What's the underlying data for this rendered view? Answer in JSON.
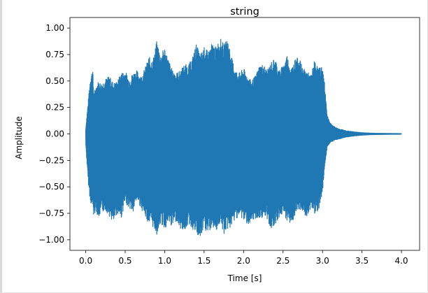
{
  "chart_data": {
    "type": "line",
    "title": "string",
    "xlabel": "Time [s]",
    "ylabel": "Amplitude",
    "xlim": [
      -0.2,
      4.23
    ],
    "ylim": [
      -1.1,
      1.1
    ],
    "x_ticks": [
      0.0,
      0.5,
      1.0,
      1.5,
      2.0,
      2.5,
      3.0,
      3.5,
      4.0
    ],
    "x_tick_labels": [
      "0.0",
      "0.5",
      "1.0",
      "1.5",
      "2.0",
      "2.5",
      "3.0",
      "3.5",
      "4.0"
    ],
    "y_ticks": [
      1.0,
      0.75,
      0.5,
      0.25,
      0.0,
      -0.25,
      -0.5,
      -0.75,
      -1.0
    ],
    "y_tick_labels": [
      "1.00",
      "0.75",
      "0.50",
      "0.25",
      "0.00",
      "−0.25",
      "−0.50",
      "−0.75",
      "−1.00"
    ],
    "grid": false,
    "color": "#1f77b4",
    "series": [
      {
        "upper_envelope": {
          "x": [
            0.0,
            0.03,
            0.06,
            0.09,
            0.1,
            0.13,
            0.16,
            0.2,
            0.25,
            0.3,
            0.35,
            0.4,
            0.45,
            0.5,
            0.55,
            0.6,
            0.65,
            0.7,
            0.75,
            0.8,
            0.85,
            0.9,
            0.95,
            1.0,
            1.05,
            1.1,
            1.15,
            1.2,
            1.25,
            1.3,
            1.35,
            1.4,
            1.45,
            1.5,
            1.55,
            1.6,
            1.65,
            1.7,
            1.75,
            1.8,
            1.85,
            1.9,
            1.95,
            2.0,
            2.05,
            2.1,
            2.15,
            2.2,
            2.25,
            2.3,
            2.35,
            2.4,
            2.45,
            2.5,
            2.55,
            2.6,
            2.65,
            2.7,
            2.75,
            2.8,
            2.85,
            2.9,
            2.95,
            3.0,
            3.03,
            3.06,
            3.1,
            3.15,
            3.2,
            3.3,
            3.4,
            3.5,
            3.6,
            3.7,
            3.8,
            3.9,
            4.0
          ],
          "y": [
            0.05,
            0.3,
            0.55,
            0.62,
            0.38,
            0.45,
            0.5,
            0.48,
            0.52,
            0.55,
            0.48,
            0.5,
            0.58,
            0.6,
            0.52,
            0.58,
            0.6,
            0.55,
            0.62,
            0.73,
            0.7,
            0.88,
            0.75,
            0.82,
            0.7,
            0.6,
            0.58,
            0.6,
            0.66,
            0.65,
            0.72,
            0.85,
            0.75,
            0.82,
            0.78,
            0.86,
            0.82,
            0.91,
            0.85,
            0.9,
            0.72,
            0.6,
            0.58,
            0.62,
            0.55,
            0.5,
            0.55,
            0.65,
            0.66,
            0.6,
            0.68,
            0.72,
            0.6,
            0.65,
            0.75,
            0.62,
            0.7,
            0.73,
            0.62,
            0.6,
            0.55,
            0.7,
            0.62,
            0.65,
            0.45,
            0.18,
            0.1,
            0.07,
            0.05,
            0.03,
            0.02,
            0.012,
            0.008,
            0.006,
            0.005,
            0.004,
            0.003
          ]
        },
        "lower_envelope": {
          "x": [
            0.0,
            0.03,
            0.06,
            0.09,
            0.1,
            0.13,
            0.16,
            0.2,
            0.25,
            0.3,
            0.35,
            0.4,
            0.45,
            0.5,
            0.55,
            0.6,
            0.65,
            0.7,
            0.75,
            0.8,
            0.85,
            0.9,
            0.95,
            1.0,
            1.05,
            1.1,
            1.15,
            1.2,
            1.25,
            1.3,
            1.35,
            1.4,
            1.45,
            1.5,
            1.55,
            1.6,
            1.65,
            1.7,
            1.75,
            1.8,
            1.85,
            1.9,
            1.95,
            2.0,
            2.05,
            2.1,
            2.15,
            2.2,
            2.25,
            2.3,
            2.35,
            2.4,
            2.45,
            2.5,
            2.55,
            2.6,
            2.65,
            2.7,
            2.75,
            2.8,
            2.85,
            2.9,
            2.95,
            3.0,
            3.03,
            3.06,
            3.1,
            3.15,
            3.2,
            3.3,
            3.4,
            3.5,
            3.6,
            3.7,
            3.8,
            3.9,
            4.0
          ],
          "y": [
            -0.1,
            -0.45,
            -0.65,
            -0.7,
            -0.78,
            -0.72,
            -0.8,
            -0.75,
            -0.72,
            -0.78,
            -0.85,
            -0.75,
            -0.8,
            -0.65,
            -0.7,
            -0.75,
            -0.62,
            -0.7,
            -0.78,
            -0.85,
            -0.88,
            -0.95,
            -0.85,
            -0.9,
            -0.85,
            -0.88,
            -0.82,
            -0.9,
            -0.92,
            -0.85,
            -0.9,
            -0.95,
            -1.0,
            -0.9,
            -0.95,
            -0.88,
            -0.92,
            -0.85,
            -0.95,
            -0.9,
            -0.88,
            -0.8,
            -0.78,
            -0.82,
            -0.85,
            -0.88,
            -0.8,
            -0.82,
            -0.78,
            -0.82,
            -0.9,
            -0.85,
            -0.8,
            -0.75,
            -0.82,
            -0.85,
            -0.8,
            -0.72,
            -0.75,
            -0.8,
            -0.7,
            -0.75,
            -0.72,
            -0.55,
            -0.3,
            -0.12,
            -0.08,
            -0.06,
            -0.05,
            -0.03,
            -0.02,
            -0.012,
            -0.008,
            -0.006,
            -0.005,
            -0.004,
            -0.003
          ]
        }
      }
    ]
  }
}
